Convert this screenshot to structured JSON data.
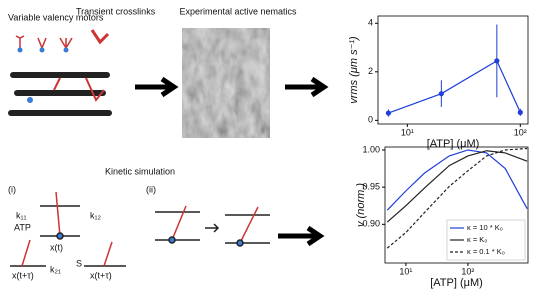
{
  "diagram": {
    "motors": "Variable valency motors",
    "crosslinks": "Transient crosslinks",
    "experiment": "Experimental active nematics",
    "simulation": "Kinetic simulation",
    "panel_i": "(i)",
    "panel_ii": "(ii)",
    "k11": "k₁₁",
    "k12": "k₁₂",
    "k21": "k₂₁",
    "atp": "ATP",
    "xt": "x(t)",
    "xtt1": "x(t+τ)",
    "xtt2": "x(t+τ)",
    "s": "S"
  },
  "chart_data": [
    {
      "type": "line",
      "xscale": "log",
      "color": "#1f3fd6",
      "x": [
        6.8,
        20,
        62,
        100
      ],
      "values": [
        0.3,
        1.1,
        2.45,
        0.33
      ],
      "errors": [
        0.15,
        0.55,
        1.5,
        0.15
      ],
      "xlim": [
        5.5,
        117
      ],
      "ylim": [
        -0.15,
        4.3
      ],
      "xticks": [
        {
          "value": 10,
          "label": "10¹"
        },
        {
          "value": 100,
          "label": "10²"
        }
      ],
      "yticks": [
        0,
        2,
        4
      ],
      "xlabel": "[ATP] (μM)",
      "ylabel": "vrms (μm s⁻¹)"
    },
    {
      "type": "line",
      "xscale": "log",
      "x": [
        5,
        10,
        20,
        50,
        100,
        200,
        400,
        900
      ],
      "series": [
        {
          "name": "κ = 10 * K₀",
          "color": "#1f3fd6",
          "dashed": false,
          "values": [
            0.919,
            0.945,
            0.969,
            0.992,
            1.0,
            0.996,
            0.975,
            0.921
          ]
        },
        {
          "name": "κ = K₀",
          "color": "#222222",
          "dashed": false,
          "values": [
            0.903,
            0.925,
            0.949,
            0.979,
            0.992,
            0.999,
            0.996,
            0.985
          ]
        },
        {
          "name": "κ = 0.1 * K₀",
          "color": "#222222",
          "dashed": true,
          "values": [
            0.868,
            0.889,
            0.916,
            0.951,
            0.972,
            0.992,
            1.0,
            1.002
          ]
        }
      ],
      "xlim": [
        4.6,
        930
      ],
      "ylim": [
        0.848,
        1.004
      ],
      "xticks": [
        {
          "value": 10,
          "label": "10¹"
        },
        {
          "value": 100,
          "label": "10²"
        }
      ],
      "yticks": [
        {
          "value": 0.9,
          "label": "0.90"
        },
        {
          "value": 0.95,
          "label": "0.95"
        },
        {
          "value": 1.0,
          "label": "1.00"
        }
      ],
      "xlabel": "[ATP] (μM)",
      "ylabel": "v (norm.)",
      "legend": "lower right"
    }
  ]
}
